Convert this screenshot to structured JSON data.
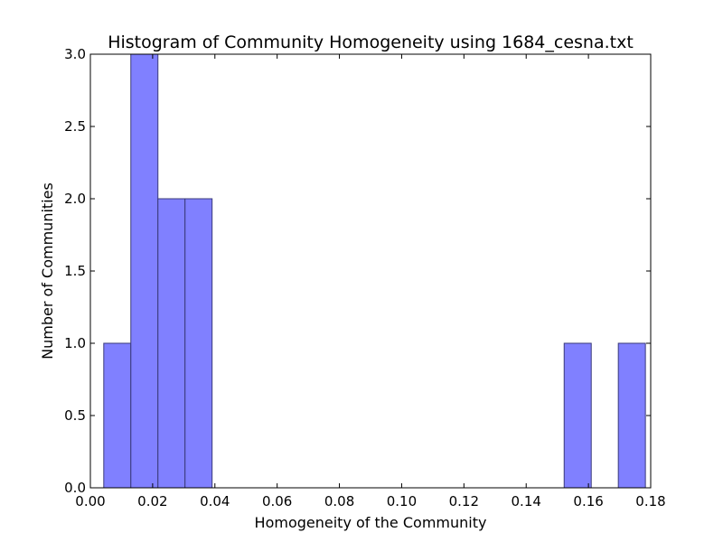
{
  "chart_data": {
    "type": "bar",
    "title": "Histogram of Community Homogeneity using 1684_cesna.txt",
    "xlabel": "Homogeneity of the Community",
    "ylabel": "Number of Communities",
    "xlim": [
      0.0,
      0.18
    ],
    "ylim": [
      0.0,
      3.0
    ],
    "x_ticks": [
      "0.00",
      "0.02",
      "0.04",
      "0.06",
      "0.08",
      "0.10",
      "0.12",
      "0.14",
      "0.16",
      "0.18"
    ],
    "y_ticks": [
      "0.0",
      "0.5",
      "1.0",
      "1.5",
      "2.0",
      "2.5",
      "3.0"
    ],
    "bar_color": "#8080ff",
    "edge_color": "#3a3a7a",
    "grid": false,
    "legend": "none",
    "bins": [
      {
        "start": 0.0043,
        "end": 0.013,
        "count": 1
      },
      {
        "start": 0.013,
        "end": 0.0217,
        "count": 3
      },
      {
        "start": 0.0217,
        "end": 0.0304,
        "count": 2
      },
      {
        "start": 0.0304,
        "end": 0.0391,
        "count": 2
      },
      {
        "start": 0.0391,
        "end": 0.0478,
        "count": 0
      },
      {
        "start": 0.0478,
        "end": 0.0565,
        "count": 0
      },
      {
        "start": 0.0565,
        "end": 0.0652,
        "count": 0
      },
      {
        "start": 0.0652,
        "end": 0.0739,
        "count": 0
      },
      {
        "start": 0.0739,
        "end": 0.0826,
        "count": 0
      },
      {
        "start": 0.0826,
        "end": 0.0913,
        "count": 0
      },
      {
        "start": 0.0913,
        "end": 0.1,
        "count": 0
      },
      {
        "start": 0.1,
        "end": 0.1087,
        "count": 0
      },
      {
        "start": 0.1087,
        "end": 0.1174,
        "count": 0
      },
      {
        "start": 0.1174,
        "end": 0.1261,
        "count": 0
      },
      {
        "start": 0.1261,
        "end": 0.1348,
        "count": 0
      },
      {
        "start": 0.1348,
        "end": 0.1435,
        "count": 0
      },
      {
        "start": 0.1435,
        "end": 0.1522,
        "count": 0
      },
      {
        "start": 0.1522,
        "end": 0.1609,
        "count": 1
      },
      {
        "start": 0.1609,
        "end": 0.1696,
        "count": 0
      },
      {
        "start": 0.1696,
        "end": 0.1783,
        "count": 1
      }
    ]
  }
}
